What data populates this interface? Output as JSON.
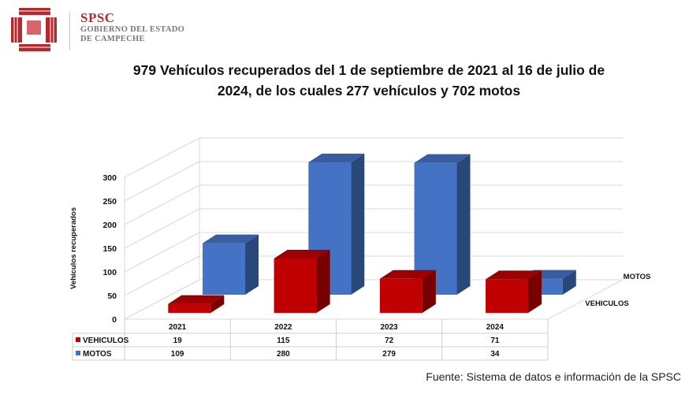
{
  "header": {
    "org_abbr": "SPSC",
    "org_line1": "GOBIERNO DEL ESTADO",
    "org_line2": "DE CAMPECHE"
  },
  "source_note": "Fuente: Sistema de datos e información de la SPSC",
  "colors": {
    "vehiculos": "#c00000",
    "motos": "#4472c4",
    "logo": "#b12a2f"
  },
  "chart_data": {
    "type": "bar",
    "style": "3d-clustered-depth",
    "title_line1": "979 Vehículos recuperados del 1 de septiembre de 2021 al 16 de julio de",
    "title_line2": "2024, de los cuales 277 vehículos y 702 motos",
    "ylabel": "Vehículos recuperados",
    "ylim": [
      0,
      300
    ],
    "yticks": [
      0,
      50,
      100,
      150,
      200,
      250,
      300
    ],
    "grid": true,
    "categories": [
      "2021",
      "2022",
      "2023",
      "2024"
    ],
    "series": [
      {
        "name": "VEHICULOS",
        "values": [
          19,
          115,
          72,
          71
        ]
      },
      {
        "name": "MOTOS",
        "values": [
          109,
          280,
          279,
          34
        ]
      }
    ],
    "data_table": true
  }
}
